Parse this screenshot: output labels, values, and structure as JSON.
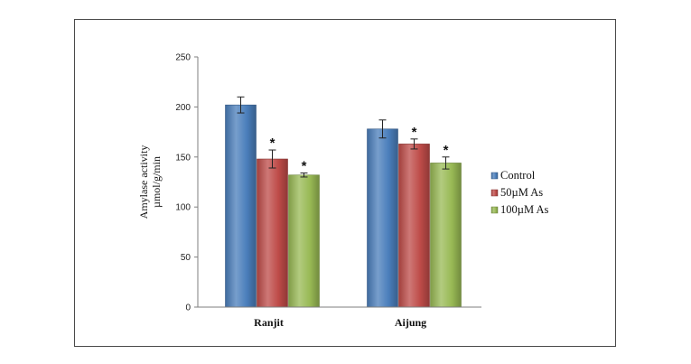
{
  "chart_data": {
    "type": "bar",
    "title": "",
    "xlabel": "",
    "ylabel_lines": [
      "Amylase activity",
      "µmol/g/min"
    ],
    "categories": [
      "Ranjit",
      "Aijung"
    ],
    "ylim": [
      0,
      250
    ],
    "yticks": [
      0,
      50,
      100,
      150,
      200,
      250
    ],
    "grid": false,
    "legend": "right",
    "series": [
      {
        "name": "Control",
        "color": "#4a7ebb",
        "values": [
          202,
          178
        ],
        "errors": [
          8,
          9
        ],
        "marks": [
          "",
          ""
        ]
      },
      {
        "name": "50µM As",
        "color": "#be4b48",
        "values": [
          148,
          163
        ],
        "errors": [
          9,
          5
        ],
        "marks": [
          "*",
          "*"
        ]
      },
      {
        "name": "100µM As",
        "color": "#98b954",
        "values": [
          132,
          144
        ],
        "errors": [
          2,
          6
        ],
        "marks": [
          "*",
          "*"
        ]
      }
    ]
  }
}
